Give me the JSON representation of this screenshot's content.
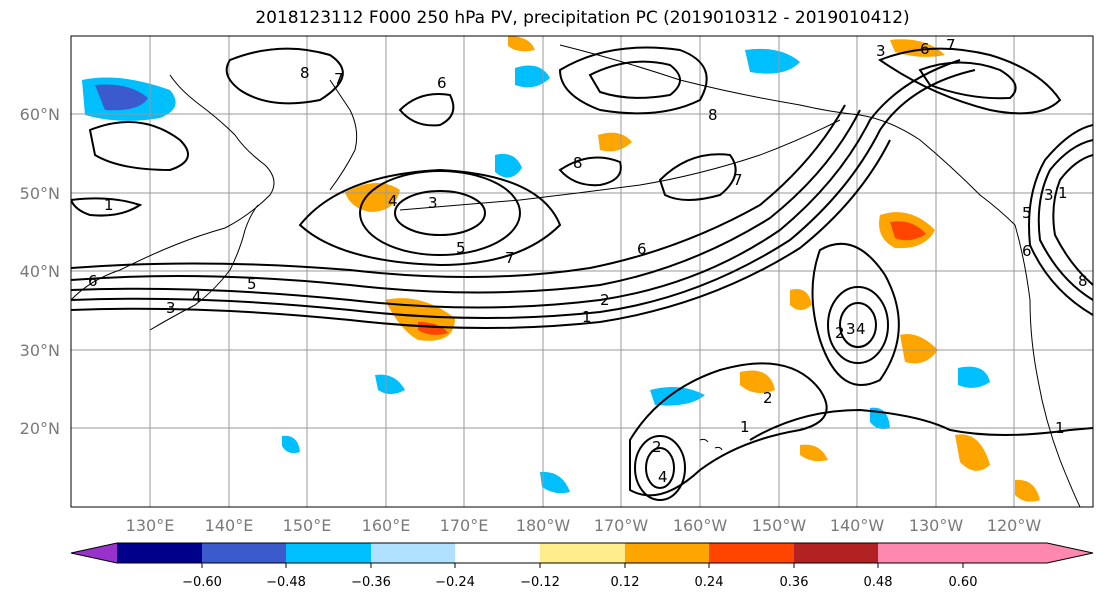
{
  "title": "2018123112 F000 250 hPa PV, precipitation PC (2019010312 - 2019010412)",
  "map": {
    "lat_labels": [
      "60°N",
      "50°N",
      "40°N",
      "30°N",
      "20°N"
    ],
    "lon_labels": [
      "130°E",
      "140°E",
      "150°E",
      "160°E",
      "170°E",
      "180°W",
      "170°W",
      "160°W",
      "150°W",
      "140°W",
      "130°W",
      "120°W"
    ],
    "contour_labels": [
      "8",
      "7",
      "6",
      "4",
      "3",
      "5",
      "7",
      "6",
      "8",
      "8",
      "7",
      "6",
      "5",
      "4",
      "3",
      "2",
      "1",
      "2",
      "1",
      "2",
      "1",
      "3",
      "4",
      "2",
      "4",
      "1",
      "8",
      "6",
      "5",
      "3",
      "1",
      "3",
      "6",
      "7"
    ]
  },
  "colorbar": {
    "colors": [
      "#9932cc",
      "#00008b",
      "#3b5bcc",
      "#00bfff",
      "#b0e0ff",
      "#ffffff",
      "#ffec8b",
      "#ffa500",
      "#ff4500",
      "#b22222",
      "#ff88b0"
    ],
    "tick_labels": [
      "−0.60",
      "−0.48",
      "−0.36",
      "−0.24",
      "−0.12",
      "0.12",
      "0.24",
      "0.36",
      "0.48",
      "0.60"
    ]
  }
}
